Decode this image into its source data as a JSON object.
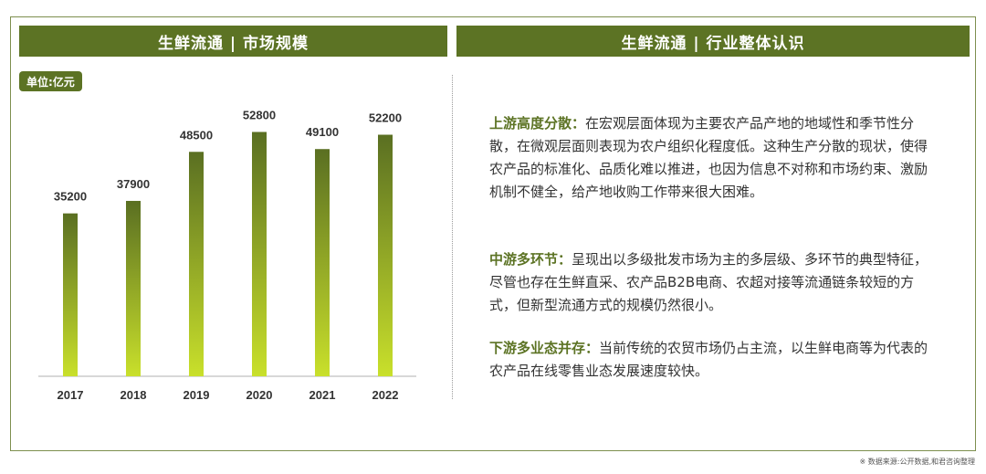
{
  "header": {
    "left_title": "生鲜流通 | 市场规模",
    "right_title": "生鲜流通 | 行业整体认识"
  },
  "unit_label": "单位:亿元",
  "chart_data": {
    "type": "bar",
    "categories": [
      "2017",
      "2018",
      "2019",
      "2020",
      "2021",
      "2022"
    ],
    "values": [
      35200,
      37900,
      48500,
      52800,
      49100,
      52200
    ],
    "data_labels": [
      "35200",
      "37900",
      "48500",
      "52800",
      "49100",
      "52200"
    ],
    "title": "",
    "xlabel": "",
    "ylabel": "",
    "ylim": [
      0,
      60000
    ],
    "grid": false,
    "colors": {
      "bar_top": "#5a6f22",
      "bar_bottom": "#c9e02b"
    }
  },
  "paragraphs": [
    {
      "keyword": "上游高度分散：",
      "text": "在宏观层面体现为主要农产品产地的地域性和季节性分散，在微观层面则表现为农户组织化程度低。这种生产分散的现状，使得农产品的标准化、品质化难以推进，也因为信息不对称和市场约束、激励机制不健全，给产地收购工作带来很大困难。"
    },
    {
      "keyword": "中游多环节：",
      "text": "呈现出以多级批发市场为主的多层级、多环节的典型特征，尽管也存在生鲜直采、农产品B2B电商、农超对接等流通链条较短的方式，但新型流通方式的规模仍然很小。"
    },
    {
      "keyword": "下游多业态并存：",
      "text": "当前传统的农贸市场仍占主流，以生鲜电商等为代表的农产品在线零售业态发展速度较快。"
    }
  ],
  "source_note": "※ 数据来源:公开数据,和君咨询整理",
  "colors": {
    "accent": "#5c7324",
    "border": "#7d8f4e"
  }
}
